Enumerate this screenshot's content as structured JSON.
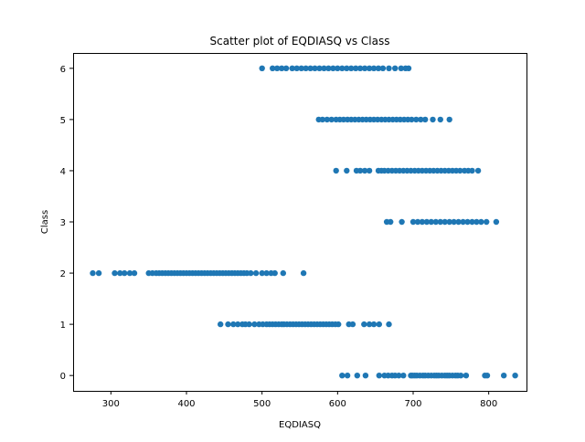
{
  "chart_data": {
    "type": "scatter",
    "title": "Scatter plot of EQDIASQ vs Class",
    "xlabel": "EQDIASQ",
    "ylabel": "Class",
    "xlim": [
      250,
      850
    ],
    "ylim": [
      -0.3,
      6.3
    ],
    "xticks": [
      300,
      400,
      500,
      600,
      700,
      800
    ],
    "yticks": [
      0,
      1,
      2,
      3,
      4,
      5,
      6
    ],
    "grid": false,
    "marker_color": "#1f77b4",
    "series": [
      {
        "points": [
          {
            "class": 0,
            "x": [
              606,
              613,
              626,
              637,
              655,
              662,
              667,
              672,
              676,
              681,
              687,
              697,
              699,
              702,
              705,
              709,
              713,
              716,
              720,
              724,
              728,
              731,
              734,
              738,
              742,
              745,
              748,
              752,
              756,
              759,
              763,
              770,
              795,
              798,
              820,
              835
            ]
          },
          {
            "class": 1,
            "x": [
              445,
              455,
              462,
              468,
              474,
              478,
              483,
              490,
              496,
              501,
              506,
              510,
              514,
              518,
              522,
              526,
              529,
              533,
              537,
              541,
              545,
              549,
              553,
              557,
              561,
              565,
              569,
              573,
              577,
              581,
              585,
              589,
              593,
              597,
              601,
              615,
              620,
              635,
              642,
              648,
              655,
              668
            ]
          },
          {
            "class": 2,
            "x": [
              276,
              284,
              305,
              312,
              318,
              325,
              331,
              350,
              355,
              360,
              364,
              368,
              372,
              376,
              380,
              384,
              388,
              392,
              396,
              400,
              404,
              408,
              412,
              416,
              420,
              424,
              428,
              432,
              436,
              440,
              444,
              448,
              452,
              456,
              460,
              464,
              468,
              472,
              476,
              480,
              485,
              492,
              500,
              506,
              512,
              517,
              528,
              555
            ]
          },
          {
            "class": 3,
            "x": [
              665,
              670,
              685,
              700,
              706,
              712,
              718,
              724,
              730,
              736,
              742,
              748,
              754,
              760,
              766,
              772,
              778,
              784,
              790,
              797,
              810
            ]
          },
          {
            "class": 4,
            "x": [
              598,
              612,
              625,
              630,
              636,
              642,
              654,
              658,
              662,
              667,
              672,
              677,
              682,
              687,
              692,
              697,
              702,
              707,
              712,
              717,
              722,
              727,
              732,
              737,
              742,
              747,
              752,
              757,
              762,
              768,
              773,
              778,
              786
            ]
          },
          {
            "class": 5,
            "x": [
              575,
              580,
              586,
              592,
              598,
              603,
              608,
              613,
              618,
              623,
              628,
              633,
              638,
              643,
              648,
              653,
              658,
              663,
              668,
              673,
              678,
              683,
              688,
              693,
              698,
              704,
              710,
              716,
              726,
              736,
              748
            ]
          },
          {
            "class": 6,
            "x": [
              500,
              514,
              520,
              526,
              532,
              540,
              546,
              552,
              558,
              564,
              570,
              576,
              582,
              588,
              594,
              600,
              606,
              612,
              618,
              624,
              630,
              636,
              642,
              648,
              654,
              660,
              668,
              676,
              684,
              690,
              694
            ]
          }
        ]
      }
    ]
  }
}
